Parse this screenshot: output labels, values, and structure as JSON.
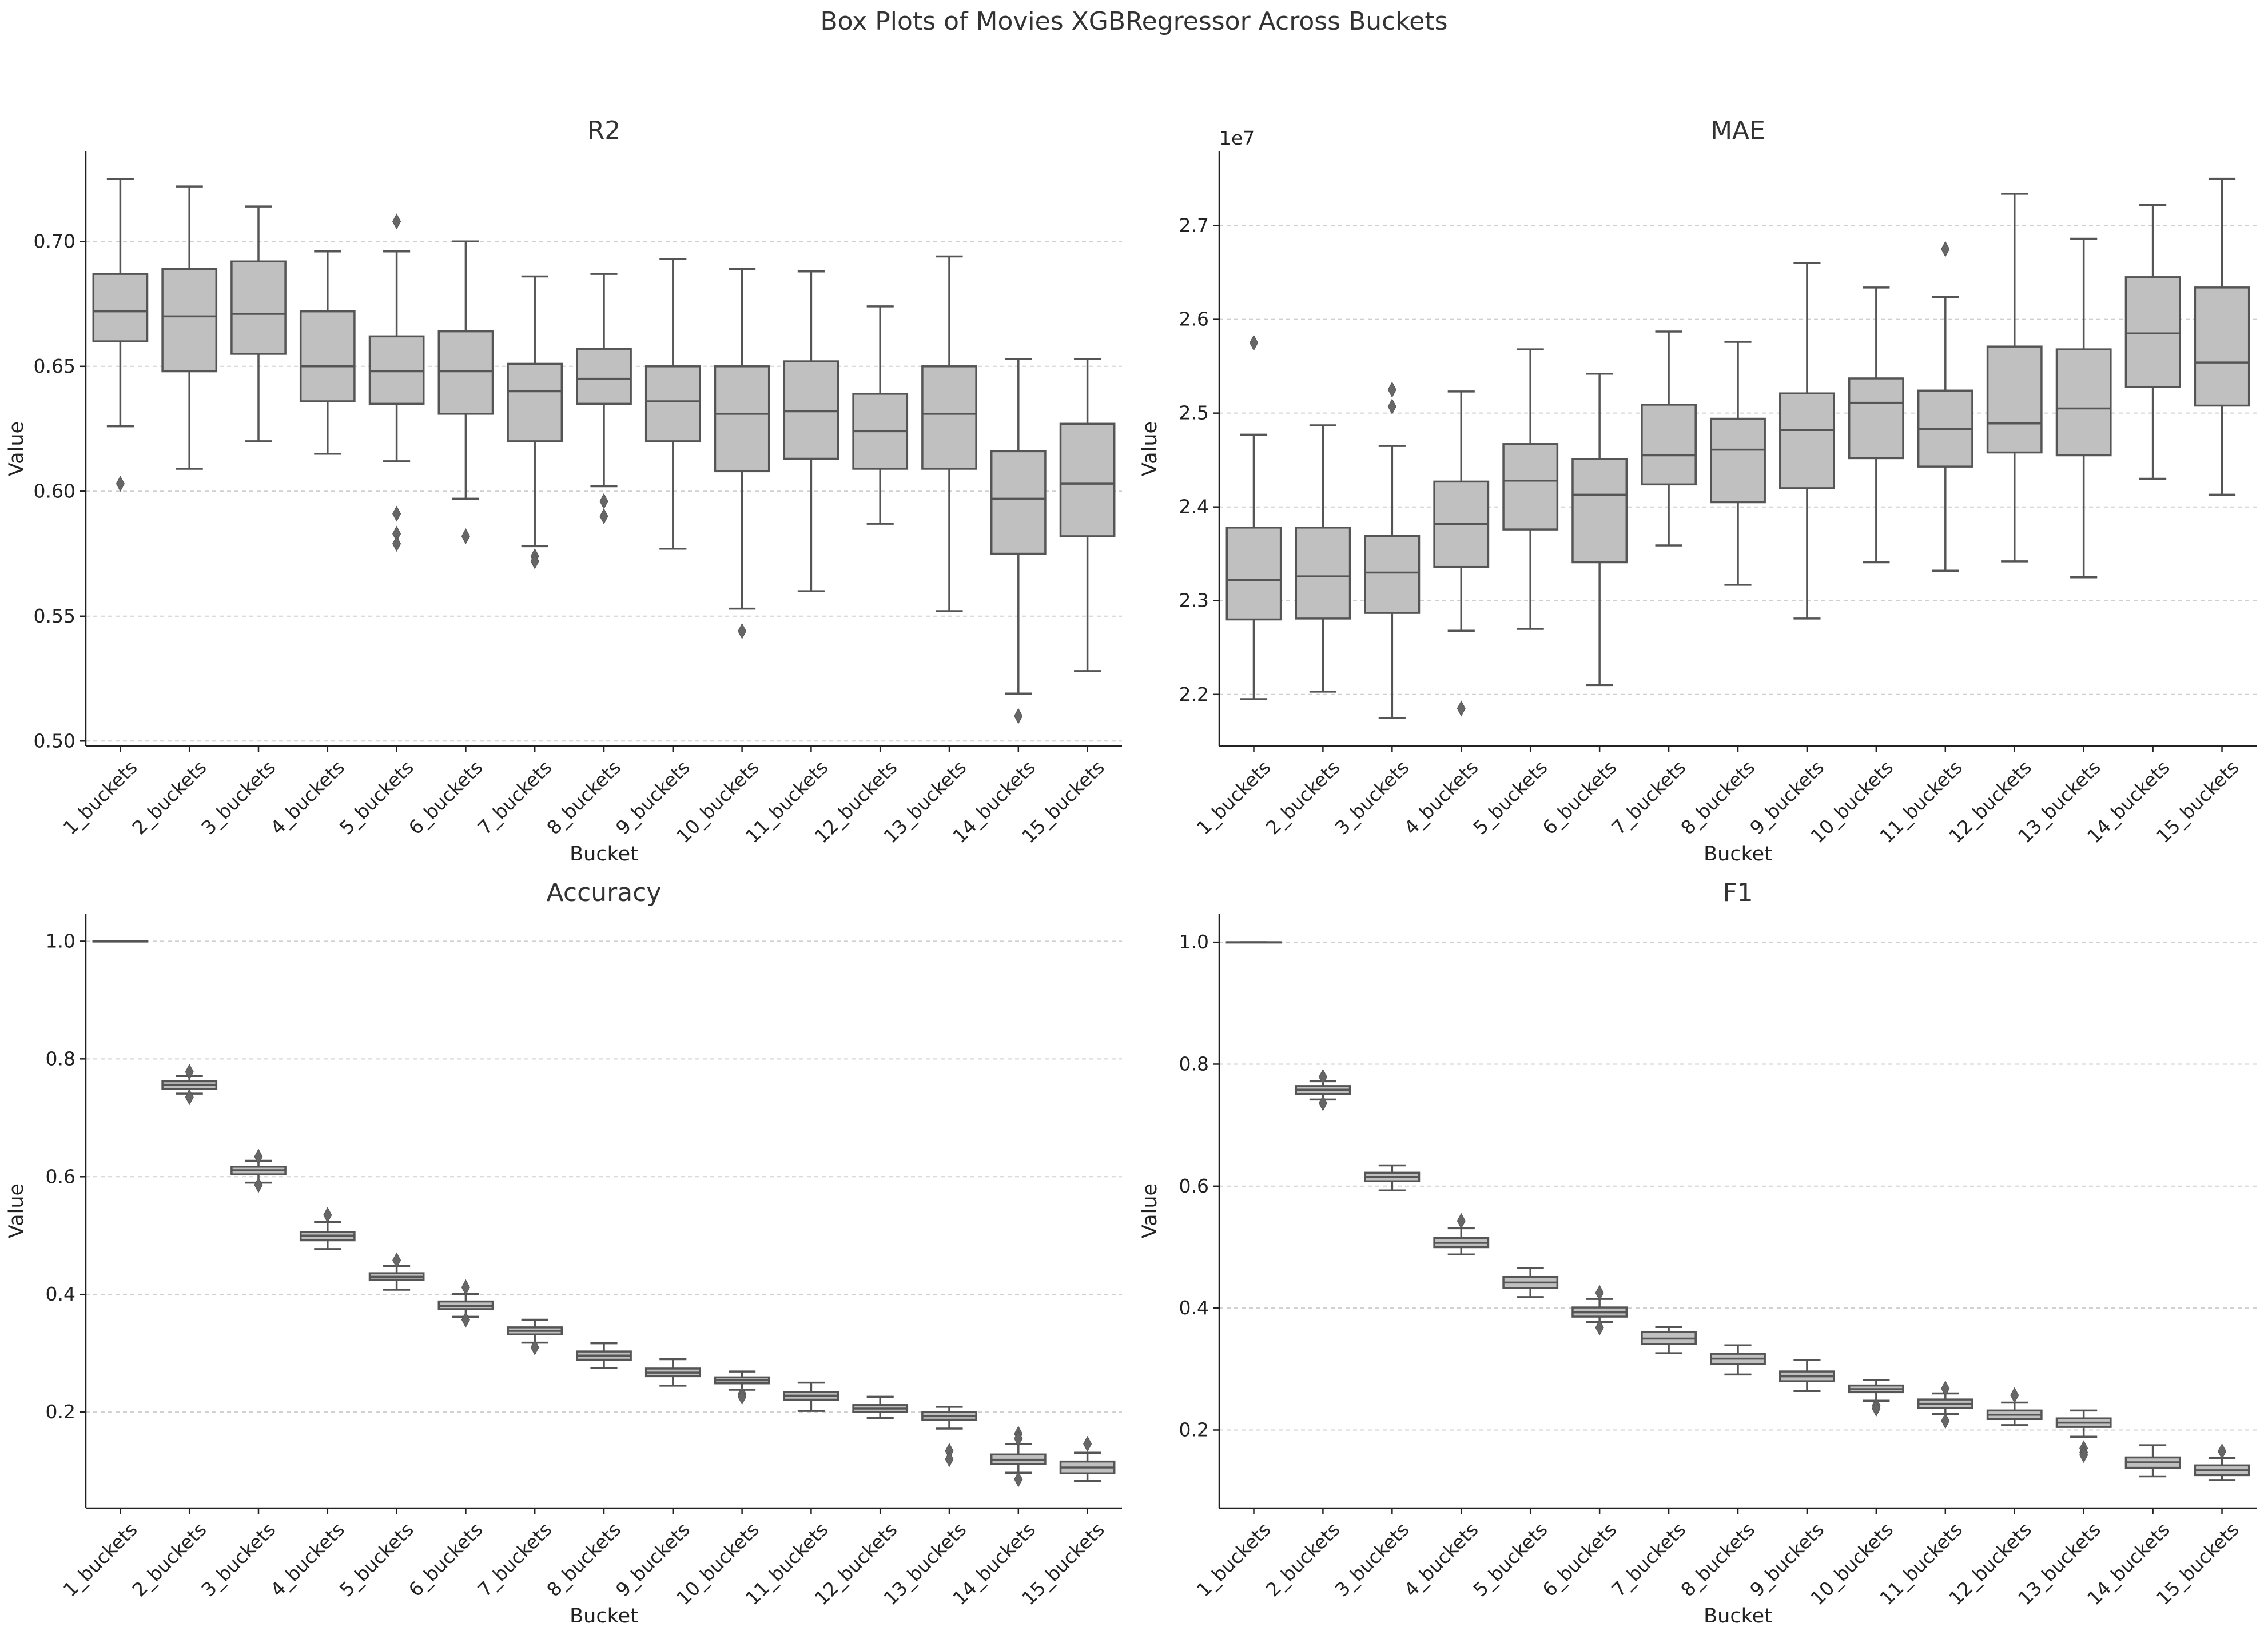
{
  "figure": {
    "title": "Box Plots of Movies XGBRegressor Across Buckets",
    "colors": {
      "box_fill": "#c0c0c0",
      "box_edge": "#555555",
      "grid": "#cfcfcf",
      "text": "#333333"
    }
  },
  "chart_data": [
    {
      "type": "box",
      "title": "R2",
      "xlabel": "Bucket",
      "ylabel": "Value",
      "ylim": [
        0.498,
        0.736
      ],
      "yticks": [
        0.5,
        0.55,
        0.6,
        0.65,
        0.7
      ],
      "ytick_labels": [
        "0.50",
        "0.55",
        "0.60",
        "0.65",
        "0.70"
      ],
      "offset_label": "",
      "grid": "y-dashed",
      "categories": [
        "1_buckets",
        "2_buckets",
        "3_buckets",
        "4_buckets",
        "5_buckets",
        "6_buckets",
        "7_buckets",
        "8_buckets",
        "9_buckets",
        "10_buckets",
        "11_buckets",
        "12_buckets",
        "13_buckets",
        "14_buckets",
        "15_buckets"
      ],
      "boxes": [
        {
          "whislo": 0.626,
          "q1": 0.66,
          "med": 0.672,
          "q3": 0.687,
          "whishi": 0.725,
          "fliers": [
            0.603
          ]
        },
        {
          "whislo": 0.609,
          "q1": 0.648,
          "med": 0.67,
          "q3": 0.689,
          "whishi": 0.722,
          "fliers": []
        },
        {
          "whislo": 0.62,
          "q1": 0.655,
          "med": 0.671,
          "q3": 0.692,
          "whishi": 0.714,
          "fliers": []
        },
        {
          "whislo": 0.615,
          "q1": 0.636,
          "med": 0.65,
          "q3": 0.672,
          "whishi": 0.696,
          "fliers": []
        },
        {
          "whislo": 0.612,
          "q1": 0.635,
          "med": 0.648,
          "q3": 0.662,
          "whishi": 0.696,
          "fliers": [
            0.708,
            0.591,
            0.583,
            0.579
          ]
        },
        {
          "whislo": 0.597,
          "q1": 0.631,
          "med": 0.648,
          "q3": 0.664,
          "whishi": 0.7,
          "fliers": [
            0.582
          ]
        },
        {
          "whislo": 0.578,
          "q1": 0.62,
          "med": 0.64,
          "q3": 0.651,
          "whishi": 0.686,
          "fliers": [
            0.574,
            0.572
          ]
        },
        {
          "whislo": 0.602,
          "q1": 0.635,
          "med": 0.645,
          "q3": 0.657,
          "whishi": 0.687,
          "fliers": [
            0.596,
            0.59
          ]
        },
        {
          "whislo": 0.577,
          "q1": 0.62,
          "med": 0.636,
          "q3": 0.65,
          "whishi": 0.693,
          "fliers": []
        },
        {
          "whislo": 0.553,
          "q1": 0.608,
          "med": 0.631,
          "q3": 0.65,
          "whishi": 0.689,
          "fliers": [
            0.544
          ]
        },
        {
          "whislo": 0.56,
          "q1": 0.613,
          "med": 0.632,
          "q3": 0.652,
          "whishi": 0.688,
          "fliers": []
        },
        {
          "whislo": 0.587,
          "q1": 0.609,
          "med": 0.624,
          "q3": 0.639,
          "whishi": 0.674,
          "fliers": []
        },
        {
          "whislo": 0.552,
          "q1": 0.609,
          "med": 0.631,
          "q3": 0.65,
          "whishi": 0.694,
          "fliers": []
        },
        {
          "whislo": 0.519,
          "q1": 0.575,
          "med": 0.597,
          "q3": 0.616,
          "whishi": 0.653,
          "fliers": [
            0.51
          ]
        },
        {
          "whislo": 0.528,
          "q1": 0.582,
          "med": 0.603,
          "q3": 0.627,
          "whishi": 0.653,
          "fliers": []
        }
      ]
    },
    {
      "type": "box",
      "title": "MAE",
      "xlabel": "Bucket",
      "ylabel": "Value",
      "ylim": [
        2.145,
        2.779
      ],
      "yticks": [
        2.2,
        2.3,
        2.4,
        2.5,
        2.6,
        2.7
      ],
      "ytick_labels": [
        "2.2",
        "2.3",
        "2.4",
        "2.5",
        "2.6",
        "2.7"
      ],
      "offset_label": "1e7",
      "grid": "y-dashed",
      "categories": [
        "1_buckets",
        "2_buckets",
        "3_buckets",
        "4_buckets",
        "5_buckets",
        "6_buckets",
        "7_buckets",
        "8_buckets",
        "9_buckets",
        "10_buckets",
        "11_buckets",
        "12_buckets",
        "13_buckets",
        "14_buckets",
        "15_buckets"
      ],
      "boxes": [
        {
          "whislo": 2.195,
          "q1": 2.28,
          "med": 2.322,
          "q3": 2.378,
          "whishi": 2.477,
          "fliers": [
            2.575
          ]
        },
        {
          "whislo": 2.203,
          "q1": 2.281,
          "med": 2.326,
          "q3": 2.378,
          "whishi": 2.487,
          "fliers": []
        },
        {
          "whislo": 2.175,
          "q1": 2.287,
          "med": 2.33,
          "q3": 2.369,
          "whishi": 2.465,
          "fliers": [
            2.525,
            2.507
          ]
        },
        {
          "whislo": 2.268,
          "q1": 2.336,
          "med": 2.382,
          "q3": 2.427,
          "whishi": 2.523,
          "fliers": [
            2.185
          ]
        },
        {
          "whislo": 2.27,
          "q1": 2.376,
          "med": 2.428,
          "q3": 2.467,
          "whishi": 2.568,
          "fliers": []
        },
        {
          "whislo": 2.21,
          "q1": 2.341,
          "med": 2.413,
          "q3": 2.451,
          "whishi": 2.542,
          "fliers": []
        },
        {
          "whislo": 2.359,
          "q1": 2.424,
          "med": 2.455,
          "q3": 2.509,
          "whishi": 2.587,
          "fliers": []
        },
        {
          "whislo": 2.317,
          "q1": 2.405,
          "med": 2.461,
          "q3": 2.494,
          "whishi": 2.576,
          "fliers": []
        },
        {
          "whislo": 2.281,
          "q1": 2.42,
          "med": 2.482,
          "q3": 2.521,
          "whishi": 2.66,
          "fliers": []
        },
        {
          "whislo": 2.341,
          "q1": 2.452,
          "med": 2.511,
          "q3": 2.537,
          "whishi": 2.634,
          "fliers": []
        },
        {
          "whislo": 2.332,
          "q1": 2.443,
          "med": 2.483,
          "q3": 2.524,
          "whishi": 2.624,
          "fliers": [
            2.675
          ]
        },
        {
          "whislo": 2.342,
          "q1": 2.458,
          "med": 2.489,
          "q3": 2.571,
          "whishi": 2.734,
          "fliers": []
        },
        {
          "whislo": 2.325,
          "q1": 2.455,
          "med": 2.505,
          "q3": 2.568,
          "whishi": 2.686,
          "fliers": []
        },
        {
          "whislo": 2.43,
          "q1": 2.528,
          "med": 2.585,
          "q3": 2.645,
          "whishi": 2.722,
          "fliers": []
        },
        {
          "whislo": 2.413,
          "q1": 2.508,
          "med": 2.554,
          "q3": 2.634,
          "whishi": 2.75,
          "fliers": []
        }
      ]
    },
    {
      "type": "box",
      "title": "Accuracy",
      "xlabel": "Bucket",
      "ylabel": "Value",
      "ylim": [
        0.037,
        1.047
      ],
      "yticks": [
        0.2,
        0.4,
        0.6,
        0.8,
        1.0
      ],
      "ytick_labels": [
        "0.2",
        "0.4",
        "0.6",
        "0.8",
        "1.0"
      ],
      "offset_label": "",
      "grid": "y-dashed",
      "categories": [
        "1_buckets",
        "2_buckets",
        "3_buckets",
        "4_buckets",
        "5_buckets",
        "6_buckets",
        "7_buckets",
        "8_buckets",
        "9_buckets",
        "10_buckets",
        "11_buckets",
        "12_buckets",
        "13_buckets",
        "14_buckets",
        "15_buckets"
      ],
      "boxes": [
        {
          "whislo": 1.0,
          "q1": 1.0,
          "med": 1.0,
          "q3": 1.0,
          "whishi": 1.0,
          "fliers": []
        },
        {
          "whislo": 0.741,
          "q1": 0.749,
          "med": 0.756,
          "q3": 0.762,
          "whishi": 0.771,
          "fliers": [
            0.778,
            0.735
          ]
        },
        {
          "whislo": 0.59,
          "q1": 0.604,
          "med": 0.611,
          "q3": 0.617,
          "whishi": 0.627,
          "fliers": [
            0.634,
            0.586
          ]
        },
        {
          "whislo": 0.477,
          "q1": 0.492,
          "med": 0.5,
          "q3": 0.506,
          "whishi": 0.523,
          "fliers": [
            0.535
          ]
        },
        {
          "whislo": 0.408,
          "q1": 0.425,
          "med": 0.43,
          "q3": 0.436,
          "whishi": 0.448,
          "fliers": [
            0.458
          ]
        },
        {
          "whislo": 0.362,
          "q1": 0.375,
          "med": 0.38,
          "q3": 0.388,
          "whishi": 0.401,
          "fliers": [
            0.412,
            0.357
          ]
        },
        {
          "whislo": 0.318,
          "q1": 0.332,
          "med": 0.338,
          "q3": 0.344,
          "whishi": 0.357,
          "fliers": [
            0.31
          ]
        },
        {
          "whislo": 0.275,
          "q1": 0.289,
          "med": 0.296,
          "q3": 0.303,
          "whishi": 0.317,
          "fliers": []
        },
        {
          "whislo": 0.245,
          "q1": 0.261,
          "med": 0.267,
          "q3": 0.274,
          "whishi": 0.29,
          "fliers": []
        },
        {
          "whislo": 0.238,
          "q1": 0.249,
          "med": 0.254,
          "q3": 0.259,
          "whishi": 0.269,
          "fliers": [
            0.231,
            0.226
          ]
        },
        {
          "whislo": 0.202,
          "q1": 0.221,
          "med": 0.228,
          "q3": 0.234,
          "whishi": 0.25,
          "fliers": []
        },
        {
          "whislo": 0.19,
          "q1": 0.2,
          "med": 0.206,
          "q3": 0.212,
          "whishi": 0.226,
          "fliers": []
        },
        {
          "whislo": 0.172,
          "q1": 0.187,
          "med": 0.193,
          "q3": 0.2,
          "whishi": 0.209,
          "fliers": [
            0.134,
            0.12
          ]
        },
        {
          "whislo": 0.097,
          "q1": 0.112,
          "med": 0.119,
          "q3": 0.128,
          "whishi": 0.146,
          "fliers": [
            0.163,
            0.155,
            0.086
          ]
        },
        {
          "whislo": 0.083,
          "q1": 0.096,
          "med": 0.106,
          "q3": 0.116,
          "whishi": 0.131,
          "fliers": [
            0.146
          ]
        }
      ]
    },
    {
      "type": "box",
      "title": "F1",
      "xlabel": "Bucket",
      "ylabel": "Value",
      "ylim": [
        0.072,
        1.047
      ],
      "yticks": [
        0.2,
        0.4,
        0.6,
        0.8,
        1.0
      ],
      "ytick_labels": [
        "0.2",
        "0.4",
        "0.6",
        "0.8",
        "1.0"
      ],
      "offset_label": "",
      "grid": "y-dashed",
      "categories": [
        "1_buckets",
        "2_buckets",
        "3_buckets",
        "4_buckets",
        "5_buckets",
        "6_buckets",
        "7_buckets",
        "8_buckets",
        "9_buckets",
        "10_buckets",
        "11_buckets",
        "12_buckets",
        "13_buckets",
        "14_buckets",
        "15_buckets"
      ],
      "boxes": [
        {
          "whislo": 1.0,
          "q1": 1.0,
          "med": 1.0,
          "q3": 1.0,
          "whishi": 1.0,
          "fliers": []
        },
        {
          "whislo": 0.742,
          "q1": 0.751,
          "med": 0.758,
          "q3": 0.764,
          "whishi": 0.772,
          "fliers": [
            0.779,
            0.736
          ]
        },
        {
          "whislo": 0.593,
          "q1": 0.608,
          "med": 0.615,
          "q3": 0.622,
          "whishi": 0.634,
          "fliers": []
        },
        {
          "whislo": 0.488,
          "q1": 0.5,
          "med": 0.507,
          "q3": 0.515,
          "whishi": 0.531,
          "fliers": [
            0.543
          ]
        },
        {
          "whislo": 0.418,
          "q1": 0.433,
          "med": 0.442,
          "q3": 0.451,
          "whishi": 0.466,
          "fliers": []
        },
        {
          "whislo": 0.377,
          "q1": 0.386,
          "med": 0.393,
          "q3": 0.401,
          "whishi": 0.415,
          "fliers": [
            0.425,
            0.368
          ]
        },
        {
          "whislo": 0.326,
          "q1": 0.341,
          "med": 0.35,
          "q3": 0.361,
          "whishi": 0.369,
          "fliers": []
        },
        {
          "whislo": 0.291,
          "q1": 0.308,
          "med": 0.317,
          "q3": 0.325,
          "whishi": 0.339,
          "fliers": []
        },
        {
          "whislo": 0.264,
          "q1": 0.28,
          "med": 0.288,
          "q3": 0.296,
          "whishi": 0.315,
          "fliers": []
        },
        {
          "whislo": 0.248,
          "q1": 0.262,
          "med": 0.267,
          "q3": 0.273,
          "whishi": 0.282,
          "fliers": [
            0.24,
            0.235
          ]
        },
        {
          "whislo": 0.226,
          "q1": 0.236,
          "med": 0.243,
          "q3": 0.25,
          "whishi": 0.26,
          "fliers": [
            0.268,
            0.215
          ]
        },
        {
          "whislo": 0.208,
          "q1": 0.218,
          "med": 0.225,
          "q3": 0.232,
          "whishi": 0.245,
          "fliers": [
            0.257
          ]
        },
        {
          "whislo": 0.189,
          "q1": 0.205,
          "med": 0.212,
          "q3": 0.219,
          "whishi": 0.232,
          "fliers": [
            0.17,
            0.163,
            0.159
          ]
        },
        {
          "whislo": 0.124,
          "q1": 0.138,
          "med": 0.147,
          "q3": 0.155,
          "whishi": 0.175,
          "fliers": []
        },
        {
          "whislo": 0.118,
          "q1": 0.126,
          "med": 0.134,
          "q3": 0.142,
          "whishi": 0.154,
          "fliers": [
            0.165
          ]
        }
      ]
    }
  ]
}
